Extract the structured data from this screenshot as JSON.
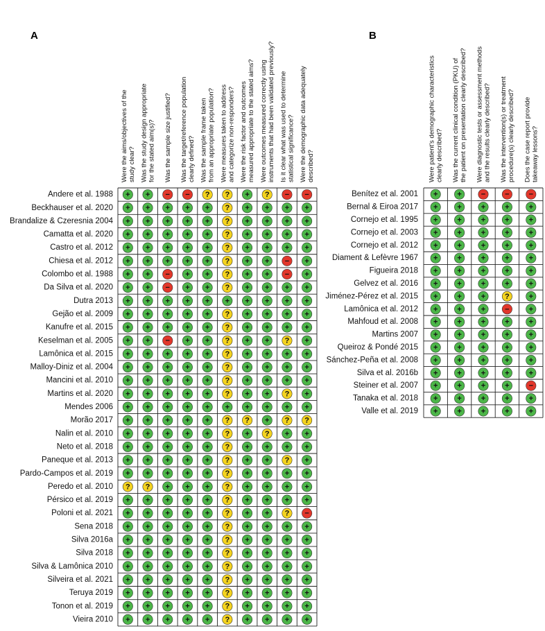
{
  "panels": [
    {
      "label": "A",
      "questions": [
        [
          "Were the aims/objectives of the",
          "study clear?"
        ],
        [
          "Was the study design appropriate",
          "for the stated aim(s)?"
        ],
        [
          "Was the sample size justified?"
        ],
        [
          "Was the target/reference population",
          "clearly defined?"
        ],
        [
          "Was the sample frame taken",
          "from an appropriate population?"
        ],
        [
          "Were measures taken to address",
          "and categorize non-responders?"
        ],
        [
          "Were the risk factor and outcomes",
          "measured appropriate to the stated aims?"
        ],
        [
          "Were outcomes measured correctly using",
          "instruments that had been validated previously?"
        ],
        [
          "Is it clear what was used to determine",
          "statistical significance?"
        ],
        [
          "Were the demographic data adequately",
          "described?"
        ]
      ],
      "studies": [
        {
          "name": "Andere et al. 1988",
          "cells": [
            "+",
            "+",
            "−",
            "−",
            "?",
            "?",
            "+",
            "?",
            "−",
            "−"
          ]
        },
        {
          "name": "Beckhauser et al. 2020",
          "cells": [
            "+",
            "+",
            "+",
            "+",
            "+",
            "?",
            "+",
            "+",
            "+",
            "+"
          ]
        },
        {
          "name": "Brandalize & Czeresnia 2004",
          "cells": [
            "+",
            "+",
            "+",
            "+",
            "+",
            "?",
            "+",
            "+",
            "+",
            "+"
          ]
        },
        {
          "name": "Camatta et al. 2020",
          "cells": [
            "+",
            "+",
            "+",
            "+",
            "+",
            "?",
            "+",
            "+",
            "+",
            "+"
          ]
        },
        {
          "name": "Castro et al. 2012",
          "cells": [
            "+",
            "+",
            "+",
            "+",
            "+",
            "?",
            "+",
            "+",
            "+",
            "+"
          ]
        },
        {
          "name": "Chiesa et al. 2012",
          "cells": [
            "+",
            "+",
            "+",
            "+",
            "+",
            "?",
            "+",
            "+",
            "−",
            "+"
          ]
        },
        {
          "name": "Colombo et al. 1988",
          "cells": [
            "+",
            "+",
            "−",
            "+",
            "+",
            "?",
            "+",
            "+",
            "−",
            "+"
          ]
        },
        {
          "name": "Da Silva et al. 2020",
          "cells": [
            "+",
            "+",
            "−",
            "+",
            "+",
            "?",
            "+",
            "+",
            "+",
            "+"
          ]
        },
        {
          "name": "Dutra 2013",
          "cells": [
            "+",
            "+",
            "+",
            "+",
            "+",
            "+",
            "+",
            "+",
            "+",
            "+"
          ]
        },
        {
          "name": "Gejão et al. 2009",
          "cells": [
            "+",
            "+",
            "+",
            "+",
            "+",
            "?",
            "+",
            "+",
            "+",
            "+"
          ]
        },
        {
          "name": "Kanufre et al. 2015",
          "cells": [
            "+",
            "+",
            "+",
            "+",
            "+",
            "?",
            "+",
            "+",
            "+",
            "+"
          ]
        },
        {
          "name": "Keselman et al. 2005",
          "cells": [
            "+",
            "+",
            "−",
            "+",
            "+",
            "?",
            "+",
            "+",
            "?",
            "+"
          ]
        },
        {
          "name": "Lamônica et al. 2015",
          "cells": [
            "+",
            "+",
            "+",
            "+",
            "+",
            "?",
            "+",
            "+",
            "+",
            "+"
          ]
        },
        {
          "name": "Malloy-Diniz et al. 2004",
          "cells": [
            "+",
            "+",
            "+",
            "+",
            "+",
            "?",
            "+",
            "+",
            "+",
            "+"
          ]
        },
        {
          "name": "Mancini et al. 2010",
          "cells": [
            "+",
            "+",
            "+",
            "+",
            "+",
            "?",
            "+",
            "+",
            "+",
            "+"
          ]
        },
        {
          "name": "Martins et al. 2020",
          "cells": [
            "+",
            "+",
            "+",
            "+",
            "+",
            "?",
            "+",
            "+",
            "?",
            "+"
          ]
        },
        {
          "name": "Mendes 2006",
          "cells": [
            "+",
            "+",
            "+",
            "+",
            "+",
            "+",
            "+",
            "+",
            "+",
            "+"
          ]
        },
        {
          "name": "Morão 2017",
          "cells": [
            "+",
            "+",
            "+",
            "+",
            "+",
            "?",
            "?",
            "+",
            "?",
            "?"
          ]
        },
        {
          "name": "Nalin et al. 2010",
          "cells": [
            "+",
            "+",
            "+",
            "+",
            "+",
            "?",
            "+",
            "?",
            "+",
            "+"
          ]
        },
        {
          "name": "Neto et al. 2018",
          "cells": [
            "+",
            "+",
            "+",
            "+",
            "+",
            "?",
            "+",
            "+",
            "+",
            "+"
          ]
        },
        {
          "name": "Paneque et al. 2013",
          "cells": [
            "+",
            "+",
            "+",
            "+",
            "+",
            "?",
            "+",
            "+",
            "?",
            "+"
          ]
        },
        {
          "name": "Pardo-Campos et al. 2019",
          "cells": [
            "+",
            "+",
            "+",
            "+",
            "+",
            "?",
            "+",
            "+",
            "+",
            "+"
          ]
        },
        {
          "name": "Peredo et al. 2010",
          "cells": [
            "?",
            "?",
            "+",
            "+",
            "+",
            "?",
            "+",
            "+",
            "+",
            "+"
          ]
        },
        {
          "name": "Pérsico et al. 2019",
          "cells": [
            "+",
            "+",
            "+",
            "+",
            "+",
            "?",
            "+",
            "+",
            "+",
            "+"
          ]
        },
        {
          "name": "Poloni et al. 2021",
          "cells": [
            "+",
            "+",
            "+",
            "+",
            "+",
            "?",
            "+",
            "+",
            "?",
            "−"
          ]
        },
        {
          "name": "Sena 2018",
          "cells": [
            "+",
            "+",
            "+",
            "+",
            "+",
            "?",
            "+",
            "+",
            "+",
            "+"
          ]
        },
        {
          "name": "Silva 2016a",
          "cells": [
            "+",
            "+",
            "+",
            "+",
            "+",
            "?",
            "+",
            "+",
            "+",
            "+"
          ]
        },
        {
          "name": "Silva 2018",
          "cells": [
            "+",
            "+",
            "+",
            "+",
            "+",
            "?",
            "+",
            "+",
            "+",
            "+"
          ]
        },
        {
          "name": "Silva & Lamônica 2010",
          "cells": [
            "+",
            "+",
            "+",
            "+",
            "+",
            "?",
            "+",
            "+",
            "+",
            "+"
          ]
        },
        {
          "name": "Silveira et al. 2021",
          "cells": [
            "+",
            "+",
            "+",
            "+",
            "+",
            "?",
            "+",
            "+",
            "+",
            "+"
          ]
        },
        {
          "name": "Teruya 2019",
          "cells": [
            "+",
            "+",
            "+",
            "+",
            "+",
            "?",
            "+",
            "+",
            "+",
            "+"
          ]
        },
        {
          "name": "Tonon et al. 2019",
          "cells": [
            "+",
            "+",
            "+",
            "+",
            "+",
            "?",
            "+",
            "+",
            "+",
            "+"
          ]
        },
        {
          "name": "Vieira 2010",
          "cells": [
            "+",
            "+",
            "+",
            "+",
            "+",
            "?",
            "+",
            "+",
            "+",
            "+"
          ]
        }
      ]
    },
    {
      "label": "B",
      "questions": [
        [
          "Were patient's demographic characteristics",
          "clearly described?"
        ],
        [
          "Was the current clinical condition (PKU) of",
          "the patient on presentation clearly described?"
        ],
        [
          "Were diagnostic tests or assessment methods",
          "and the results clearly described?"
        ],
        [
          "Was the intervention(s) or treatment",
          "procedure(s) clearly described?"
        ],
        [
          "Does the case report provide",
          "takeaway lessons?"
        ]
      ],
      "studies": [
        {
          "name": "Benítez et al. 2001",
          "cells": [
            "+",
            "+",
            "−",
            "−",
            "−"
          ]
        },
        {
          "name": "Bernal & Eiroa 2017",
          "cells": [
            "+",
            "+",
            "+",
            "+",
            "+"
          ]
        },
        {
          "name": "Cornejo et al. 1995",
          "cells": [
            "+",
            "+",
            "+",
            "+",
            "+"
          ]
        },
        {
          "name": "Cornejo et al. 2003",
          "cells": [
            "+",
            "+",
            "+",
            "+",
            "+"
          ]
        },
        {
          "name": "Cornejo et al. 2012",
          "cells": [
            "+",
            "+",
            "+",
            "+",
            "+"
          ]
        },
        {
          "name": "Diament & Lefèvre 1967",
          "cells": [
            "+",
            "+",
            "+",
            "+",
            "+"
          ]
        },
        {
          "name": "Figueira 2018",
          "cells": [
            "+",
            "+",
            "+",
            "+",
            "+"
          ]
        },
        {
          "name": "Gelvez et al. 2016",
          "cells": [
            "+",
            "+",
            "+",
            "+",
            "+"
          ]
        },
        {
          "name": "Jiménez-Pérez et al. 2015",
          "cells": [
            "+",
            "+",
            "+",
            "?",
            "+"
          ]
        },
        {
          "name": "Lamônica et al. 2012",
          "cells": [
            "+",
            "+",
            "+",
            "−",
            "+"
          ]
        },
        {
          "name": "Mahfoud et al. 2008",
          "cells": [
            "+",
            "+",
            "+",
            "+",
            "+"
          ]
        },
        {
          "name": "Martins 2007",
          "cells": [
            "+",
            "+",
            "+",
            "+",
            "+"
          ]
        },
        {
          "name": "Queiroz & Pondé 2015",
          "cells": [
            "+",
            "+",
            "+",
            "+",
            "+"
          ]
        },
        {
          "name": "Sánchez-Peña et al. 2008",
          "cells": [
            "+",
            "+",
            "+",
            "+",
            "+"
          ]
        },
        {
          "name": "Silva et al. 2016b",
          "cells": [
            "+",
            "+",
            "+",
            "+",
            "+"
          ]
        },
        {
          "name": "Steiner et al. 2007",
          "cells": [
            "+",
            "+",
            "+",
            "+",
            "−"
          ]
        },
        {
          "name": "Tanaka et al. 2018",
          "cells": [
            "+",
            "+",
            "+",
            "+",
            "+"
          ]
        },
        {
          "name": "Valle et al. 2019",
          "cells": [
            "+",
            "+",
            "+",
            "+",
            "+"
          ]
        }
      ]
    }
  ],
  "symbol_colors": {
    "+": "#4cb648",
    "?": "#f4d31f",
    "−": "#e2372b"
  }
}
